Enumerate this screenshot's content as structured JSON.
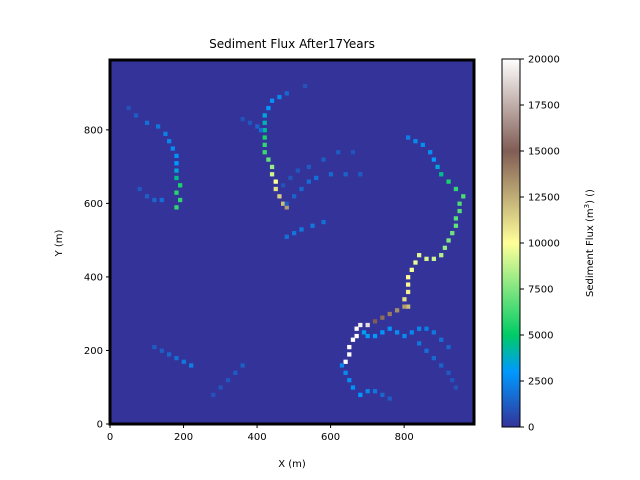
{
  "chart_data": {
    "type": "heatmap",
    "title": "Sediment Flux After17Years",
    "xlabel": "X (m)",
    "ylabel": "Y (m)",
    "colorbar_label": "Sediment Flux (m^3) ()",
    "colormap": "terrain",
    "xlim": [
      0,
      990
    ],
    "ylim": [
      0,
      990
    ],
    "clim": [
      0,
      20000
    ],
    "x_ticks": [
      0,
      200,
      400,
      600,
      800
    ],
    "y_ticks": [
      0,
      200,
      400,
      600,
      800
    ],
    "colorbar_ticks": [
      0,
      2500,
      5000,
      7500,
      10000,
      12500,
      15000,
      17500,
      20000
    ],
    "background_value": 0,
    "channels": [
      {
        "name_hint": "upper-left",
        "points": [
          [
            50,
            860
          ],
          [
            70,
            840
          ],
          [
            100,
            820
          ],
          [
            130,
            810
          ],
          [
            150,
            790
          ],
          [
            160,
            770
          ],
          [
            170,
            750
          ],
          [
            180,
            730
          ],
          [
            180,
            710
          ],
          [
            180,
            690
          ],
          [
            180,
            670
          ],
          [
            190,
            650
          ],
          [
            180,
            630
          ],
          [
            190,
            610
          ],
          [
            180,
            590
          ]
        ],
        "values": [
          900,
          1200,
          1800,
          2000,
          2200,
          2400,
          2600,
          2800,
          3000,
          3500,
          4500,
          5500,
          5800,
          5900,
          6000
        ]
      },
      {
        "name_hint": "upper-center",
        "points": [
          [
            420,
            780
          ],
          [
            420,
            760
          ],
          [
            420,
            740
          ],
          [
            430,
            720
          ],
          [
            440,
            700
          ],
          [
            440,
            680
          ],
          [
            450,
            660
          ],
          [
            450,
            640
          ],
          [
            460,
            620
          ],
          [
            470,
            600
          ],
          [
            480,
            590
          ]
        ],
        "values": [
          5500,
          6000,
          6200,
          7000,
          8000,
          9000,
          10000,
          11000,
          11500,
          12000,
          13000
        ]
      },
      {
        "name_hint": "upper-center-head",
        "points": [
          [
            530,
            920
          ],
          [
            480,
            900
          ],
          [
            460,
            890
          ],
          [
            440,
            880
          ],
          [
            430,
            860
          ],
          [
            420,
            840
          ],
          [
            420,
            820
          ],
          [
            420,
            800
          ]
        ],
        "values": [
          900,
          1500,
          2500,
          2800,
          3000,
          3500,
          4000,
          4500
        ]
      },
      {
        "name_hint": "upper-center-branch",
        "points": [
          [
            360,
            830
          ],
          [
            380,
            820
          ],
          [
            400,
            810
          ],
          [
            410,
            800
          ]
        ],
        "values": [
          900,
          1100,
          1400,
          1700
        ]
      },
      {
        "name_hint": "right-main",
        "points": [
          [
            810,
            780
          ],
          [
            830,
            770
          ],
          [
            850,
            760
          ],
          [
            870,
            740
          ],
          [
            880,
            720
          ],
          [
            890,
            700
          ],
          [
            900,
            680
          ],
          [
            920,
            660
          ],
          [
            940,
            640
          ],
          [
            960,
            620
          ],
          [
            950,
            600
          ],
          [
            950,
            580
          ],
          [
            940,
            560
          ],
          [
            940,
            540
          ],
          [
            930,
            520
          ],
          [
            920,
            500
          ],
          [
            910,
            480
          ],
          [
            900,
            460
          ],
          [
            880,
            450
          ],
          [
            860,
            450
          ],
          [
            840,
            460
          ],
          [
            830,
            440
          ],
          [
            820,
            420
          ],
          [
            810,
            400
          ],
          [
            810,
            380
          ],
          [
            810,
            360
          ],
          [
            800,
            340
          ],
          [
            810,
            320
          ]
        ],
        "values": [
          2200,
          2500,
          2600,
          2700,
          3000,
          3500,
          4500,
          5500,
          6000,
          6500,
          6500,
          6700,
          6800,
          7000,
          7200,
          7500,
          8000,
          8500,
          9000,
          9200,
          9400,
          9600,
          9800,
          10000,
          10200,
          10500,
          11000,
          12000
        ]
      },
      {
        "name_hint": "right-lower",
        "points": [
          [
            800,
            320
          ],
          [
            780,
            310
          ],
          [
            760,
            300
          ],
          [
            740,
            290
          ],
          [
            720,
            280
          ],
          [
            700,
            270
          ],
          [
            680,
            270
          ],
          [
            670,
            260
          ],
          [
            670,
            240
          ],
          [
            660,
            230
          ],
          [
            650,
            210
          ],
          [
            650,
            190
          ],
          [
            640,
            170
          ]
        ],
        "values": [
          13000,
          13500,
          14000,
          14500,
          15000,
          19000,
          19500,
          19800,
          20000,
          20000,
          20000,
          20000,
          20000
        ]
      },
      {
        "name_hint": "lower-tributary",
        "points": [
          [
            920,
            210
          ],
          [
            900,
            230
          ],
          [
            880,
            250
          ],
          [
            860,
            260
          ],
          [
            840,
            260
          ],
          [
            820,
            250
          ],
          [
            800,
            240
          ],
          [
            780,
            250
          ],
          [
            760,
            260
          ],
          [
            740,
            250
          ],
          [
            720,
            240
          ],
          [
            700,
            240
          ],
          [
            690,
            250
          ]
        ],
        "values": [
          1500,
          1800,
          2000,
          2200,
          2400,
          2500,
          2600,
          2700,
          2800,
          2900,
          3000,
          3100,
          3200
        ]
      },
      {
        "name_hint": "lower-left-loop",
        "points": [
          [
            630,
            160
          ],
          [
            640,
            140
          ],
          [
            650,
            120
          ],
          [
            660,
            100
          ],
          [
            680,
            80
          ],
          [
            700,
            90
          ],
          [
            720,
            90
          ],
          [
            740,
            80
          ],
          [
            760,
            70
          ]
        ],
        "values": [
          2500,
          2600,
          2700,
          2800,
          3000,
          2500,
          2000,
          1500,
          1200
        ]
      },
      {
        "name_hint": "center-branch",
        "points": [
          [
            480,
            600
          ],
          [
            500,
            620
          ],
          [
            520,
            640
          ],
          [
            540,
            660
          ],
          [
            560,
            670
          ],
          [
            600,
            680
          ],
          [
            640,
            680
          ],
          [
            680,
            680
          ]
        ],
        "values": [
          1200,
          1400,
          1600,
          1700,
          1800,
          1600,
          1400,
          1200
        ]
      },
      {
        "name_hint": "center-branch-2",
        "points": [
          [
            470,
            650
          ],
          [
            490,
            670
          ],
          [
            510,
            690
          ],
          [
            540,
            700
          ],
          [
            580,
            720
          ],
          [
            620,
            740
          ],
          [
            660,
            740
          ]
        ],
        "values": [
          900,
          1000,
          1100,
          1200,
          1300,
          1200,
          1000
        ]
      },
      {
        "name_hint": "center-mid",
        "points": [
          [
            480,
            510
          ],
          [
            500,
            520
          ],
          [
            520,
            530
          ],
          [
            550,
            540
          ],
          [
            580,
            550
          ]
        ],
        "values": [
          1800,
          2000,
          2100,
          2000,
          1800
        ]
      },
      {
        "name_hint": "lower-right",
        "points": [
          [
            940,
            100
          ],
          [
            930,
            120
          ],
          [
            920,
            140
          ],
          [
            900,
            160
          ],
          [
            880,
            180
          ],
          [
            860,
            200
          ],
          [
            840,
            220
          ]
        ],
        "values": [
          900,
          1000,
          1200,
          1400,
          1600,
          1800,
          2000
        ]
      },
      {
        "name_hint": "small-left",
        "points": [
          [
            120,
            210
          ],
          [
            140,
            200
          ],
          [
            160,
            190
          ],
          [
            180,
            180
          ],
          [
            200,
            170
          ],
          [
            220,
            160
          ]
        ],
        "values": [
          1200,
          1300,
          1500,
          1800,
          2000,
          2200
        ]
      },
      {
        "name_hint": "small-left-2",
        "points": [
          [
            80,
            640
          ],
          [
            100,
            620
          ],
          [
            120,
            610
          ],
          [
            140,
            610
          ]
        ],
        "values": [
          1100,
          1300,
          1500,
          1700
        ]
      },
      {
        "name_hint": "lower-center",
        "points": [
          [
            280,
            80
          ],
          [
            300,
            100
          ],
          [
            320,
            120
          ],
          [
            340,
            140
          ],
          [
            360,
            160
          ]
        ],
        "values": [
          900,
          1000,
          1100,
          1200,
          1300
        ]
      }
    ]
  }
}
